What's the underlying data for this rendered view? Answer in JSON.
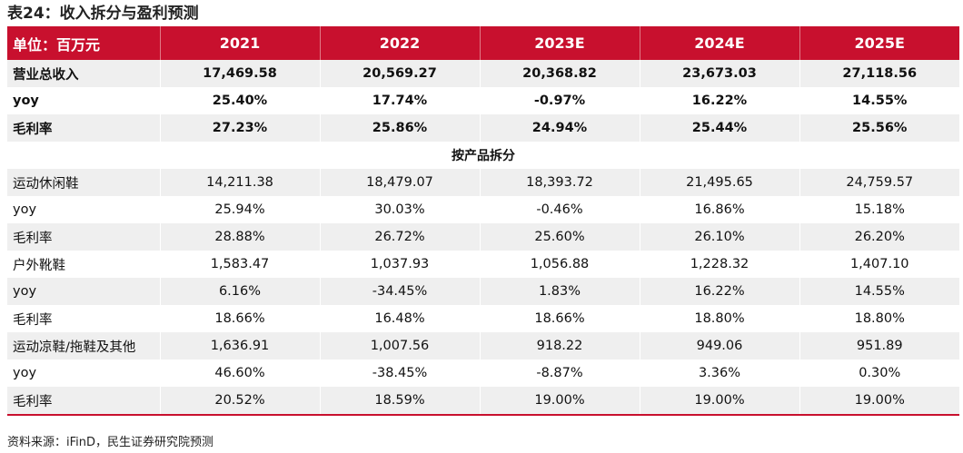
{
  "title": "表24：收入拆分与盈利预测",
  "header": [
    "单位：百万元",
    "2021",
    "2022",
    "2023E",
    "2024E",
    "2025E"
  ],
  "rows": [
    {
      "label": "营业总收入",
      "values": [
        "17,469.58",
        "20,569.27",
        "20,368.82",
        "23,673.03",
        "27,118.56"
      ]
    },
    {
      "label": "yoy",
      "values": [
        "25.40%",
        "17.74%",
        "-0.97%",
        "16.22%",
        "14.55%"
      ]
    },
    {
      "label": "毛利率",
      "values": [
        "27.23%",
        "25.86%",
        "24.94%",
        "25.44%",
        "25.56%"
      ]
    }
  ],
  "section_title": "按产品拆分",
  "detail_rows": [
    {
      "label": "运动休闲鞋",
      "values": [
        "14,211.38",
        "18,479.07",
        "18,393.72",
        "21,495.65",
        "24,759.57"
      ]
    },
    {
      "label": "yoy",
      "values": [
        "25.94%",
        "30.03%",
        "-0.46%",
        "16.86%",
        "15.18%"
      ]
    },
    {
      "label": "毛利率",
      "values": [
        "28.88%",
        "26.72%",
        "25.60%",
        "26.10%",
        "26.20%"
      ]
    },
    {
      "label": "户外靴鞋",
      "values": [
        "1,583.47",
        "1,037.93",
        "1,056.88",
        "1,228.32",
        "1,407.10"
      ]
    },
    {
      "label": "yoy",
      "values": [
        "6.16%",
        "-34.45%",
        "1.83%",
        "16.22%",
        "14.55%"
      ]
    },
    {
      "label": "毛利率",
      "values": [
        "18.66%",
        "16.48%",
        "18.66%",
        "18.80%",
        "18.80%"
      ]
    },
    {
      "label": "运动凉鞋/拖鞋及其他",
      "values": [
        "1,636.91",
        "1,007.56",
        "918.22",
        "949.06",
        "951.89"
      ]
    },
    {
      "label": "yoy",
      "values": [
        "46.60%",
        "-38.45%",
        "-8.87%",
        "3.36%",
        "0.30%"
      ]
    },
    {
      "label": "毛利率",
      "values": [
        "20.52%",
        "18.59%",
        "19.00%",
        "19.00%",
        "19.00%"
      ]
    }
  ],
  "source": "资料来源：iFinD，民生证券研究院预测",
  "colors": {
    "header_bg": "#c8102e",
    "shade_bg": "#efefef"
  }
}
